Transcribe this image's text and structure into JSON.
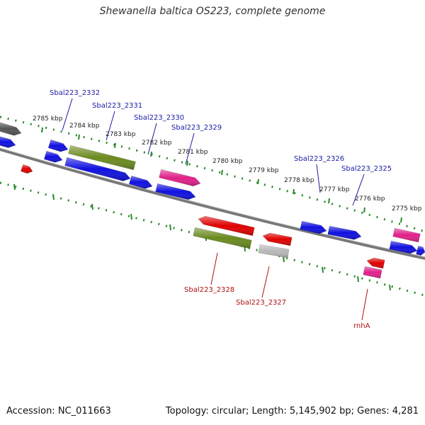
{
  "title": "Shewanella baltica OS223, complete genome",
  "footer": {
    "accession": "Accession: NC_011663",
    "topology": "Topology: circular; Length: 5,145,902 bp; Genes: 4,281"
  },
  "colors": {
    "backbone": "#777777",
    "ruler": "#2a8a2a",
    "forward_label": "#1a1aa6",
    "reverse_label": "#b01010",
    "blue": "#1010e0",
    "olive": "#6b8a1f",
    "red": "#e00000",
    "pink": "#e0208a",
    "gray": "#b8b8b8",
    "dark_gray": "#555555"
  },
  "ruler_labels": [
    "2785 kbp",
    "2784 kbp",
    "2783 kbp",
    "2782 kbp",
    "2781 kbp",
    "2780 kbp",
    "2779 kbp",
    "2778 kbp",
    "2777 kbp",
    "2776 kbp",
    "2775 kbp"
  ],
  "forward_gene_labels": [
    "Sbal223_2332",
    "Sbal223_2331",
    "Sbal223_2330",
    "Sbal223_2329",
    "Sbal223_2326",
    "Sbal223_2325"
  ],
  "reverse_gene_labels": [
    "Sbal223_2328",
    "Sbal223_2327",
    "rnhA"
  ]
}
